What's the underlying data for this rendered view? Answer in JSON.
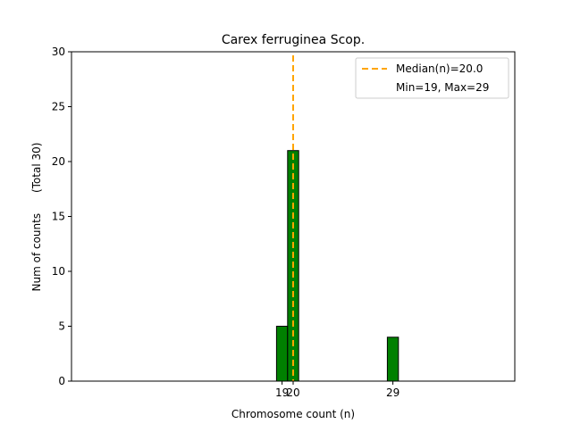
{
  "chart_data": {
    "type": "bar",
    "title": "Carex ferruginea Scop.",
    "xlabel": "Chromosome count (n)",
    "ylabel": "Num of counts      (Total 30)",
    "xlim": [
      0,
      40
    ],
    "ylim": [
      0,
      30
    ],
    "x_ticks": [
      19,
      20,
      29
    ],
    "y_ticks": [
      0,
      5,
      10,
      15,
      20,
      25,
      30
    ],
    "bins_range": [
      -0.5,
      32.5
    ],
    "bars": [
      {
        "x": 19,
        "value": 5
      },
      {
        "x": 20,
        "value": 21
      },
      {
        "x": 29,
        "value": 4
      }
    ],
    "median": 20.0,
    "legend": {
      "placement": "top-right",
      "entries": [
        "Median(n)=20.0",
        "Min=19, Max=29"
      ]
    },
    "colors": {
      "bar": "#008000",
      "median": "#FFA500"
    }
  }
}
